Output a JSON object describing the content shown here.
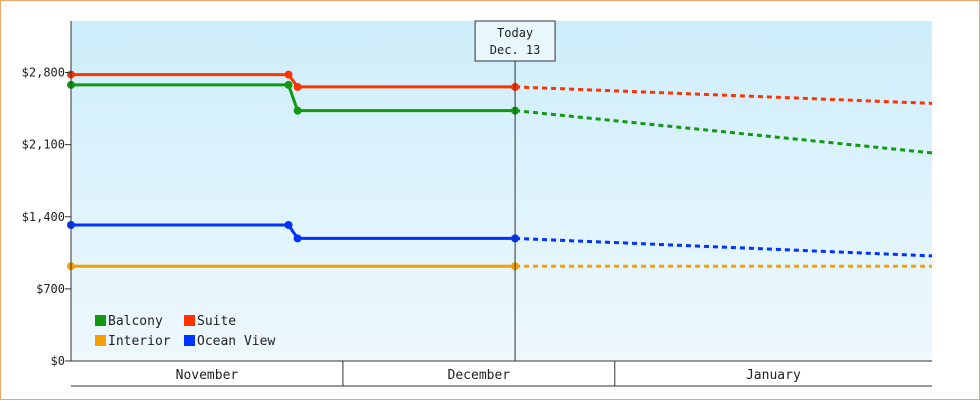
{
  "chart_data": {
    "type": "line",
    "y_ticks": [
      "$0",
      "$700",
      "$1,400",
      "$2,100",
      "$2,800"
    ],
    "y_tick_values": [
      0,
      700,
      1400,
      2100,
      2800
    ],
    "ylim": [
      0,
      3300
    ],
    "x_axis": {
      "months": [
        "November",
        "December",
        "January"
      ],
      "start": "2023-10-25",
      "end": "2024-01-28",
      "month_boundaries": [
        "2023-11-24",
        "2023-12-24"
      ]
    },
    "today": {
      "date": "2023-12-13",
      "line1": "Today",
      "line2": "Dec. 13"
    },
    "series": [
      {
        "name": "Balcony",
        "color": "#119911",
        "actual": [
          {
            "x": "2023-10-25",
            "y": 2680
          },
          {
            "x": "2023-11-18",
            "y": 2680
          },
          {
            "x": "2023-11-19",
            "y": 2430
          },
          {
            "x": "2023-12-13",
            "y": 2430
          }
        ],
        "forecast": [
          {
            "x": "2023-12-13",
            "y": 2430
          },
          {
            "x": "2024-01-28",
            "y": 2020
          }
        ]
      },
      {
        "name": "Suite",
        "color": "#ff3300",
        "actual": [
          {
            "x": "2023-10-25",
            "y": 2780
          },
          {
            "x": "2023-11-18",
            "y": 2780
          },
          {
            "x": "2023-11-19",
            "y": 2660
          },
          {
            "x": "2023-12-13",
            "y": 2660
          }
        ],
        "forecast": [
          {
            "x": "2023-12-13",
            "y": 2660
          },
          {
            "x": "2024-01-28",
            "y": 2500
          }
        ]
      },
      {
        "name": "Interior",
        "color": "#f5a000",
        "actual": [
          {
            "x": "2023-10-25",
            "y": 920
          },
          {
            "x": "2023-12-13",
            "y": 920
          }
        ],
        "forecast": [
          {
            "x": "2023-12-13",
            "y": 920
          },
          {
            "x": "2024-01-28",
            "y": 920
          }
        ]
      },
      {
        "name": "Ocean View",
        "color": "#0033ff",
        "actual": [
          {
            "x": "2023-10-25",
            "y": 1320
          },
          {
            "x": "2023-11-18",
            "y": 1320
          },
          {
            "x": "2023-11-19",
            "y": 1190
          },
          {
            "x": "2023-12-13",
            "y": 1190
          }
        ],
        "forecast": [
          {
            "x": "2023-12-13",
            "y": 1190
          },
          {
            "x": "2024-01-28",
            "y": 1020
          }
        ]
      }
    ],
    "legend_placement": "bottom-left",
    "grid": false,
    "background_gradient": [
      "#cdeefb",
      "#eef8fd"
    ]
  }
}
